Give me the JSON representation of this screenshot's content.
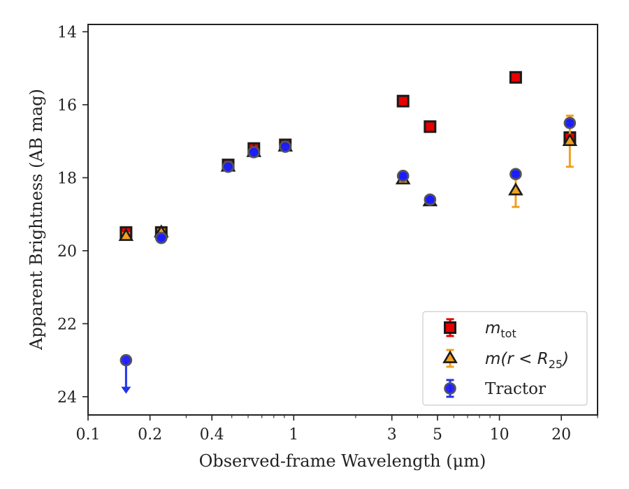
{
  "chart_data": {
    "type": "scatter",
    "xlabel": "Observed-frame Wavelength (μm)",
    "ylabel": "Apparent Brightness (AB mag)",
    "xscale": "log",
    "xlim": [
      0.1,
      30
    ],
    "ylim": [
      24.5,
      13.8
    ],
    "y_inverted": true,
    "xticks": [
      {
        "value": 0.1,
        "label": "0.1"
      },
      {
        "value": 0.2,
        "label": "0.2"
      },
      {
        "value": 0.4,
        "label": "0.4"
      },
      {
        "value": 1,
        "label": "1"
      },
      {
        "value": 3,
        "label": "3"
      },
      {
        "value": 5,
        "label": "5"
      },
      {
        "value": 10,
        "label": "10"
      },
      {
        "value": 20,
        "label": "20"
      }
    ],
    "yticks": [
      {
        "value": 14,
        "label": "14"
      },
      {
        "value": 16,
        "label": "16"
      },
      {
        "value": 18,
        "label": "18"
      },
      {
        "value": 20,
        "label": "20"
      },
      {
        "value": 22,
        "label": "22"
      },
      {
        "value": 24,
        "label": "24"
      }
    ],
    "legend_position": "lower-right",
    "series": [
      {
        "name": "m_tot",
        "legend_main": "m",
        "legend_sub": "tot",
        "legend_tail": "",
        "marker": "square",
        "color": "#e60000",
        "errcolor": "#e60000",
        "points": [
          {
            "x": 0.153,
            "y": 19.5,
            "err": 0.08
          },
          {
            "x": 0.227,
            "y": 19.5,
            "err": 0.08
          },
          {
            "x": 0.48,
            "y": 17.65,
            "err": 0.12
          },
          {
            "x": 0.64,
            "y": 17.2,
            "err": 0.1
          },
          {
            "x": 0.91,
            "y": 17.1,
            "err": 0.1
          },
          {
            "x": 3.4,
            "y": 15.9,
            "err": 0.05
          },
          {
            "x": 4.6,
            "y": 16.6,
            "err": 0.05
          },
          {
            "x": 12.0,
            "y": 15.25,
            "err": 0.05
          },
          {
            "x": 22.0,
            "y": 16.9,
            "err": 0.1
          }
        ]
      },
      {
        "name": "m(r < R_25)",
        "legend_main": "m(r < R",
        "legend_sub": "25",
        "legend_tail": ")",
        "marker": "triangle",
        "color": "#f0a020",
        "errcolor": "#f0a020",
        "points": [
          {
            "x": 0.153,
            "y": 19.6,
            "err": 0.08
          },
          {
            "x": 0.227,
            "y": 19.5,
            "err": 0.08
          },
          {
            "x": 0.48,
            "y": 17.7,
            "err": 0.1
          },
          {
            "x": 0.64,
            "y": 17.3,
            "err": 0.1
          },
          {
            "x": 0.91,
            "y": 17.15,
            "err": 0.1
          },
          {
            "x": 3.4,
            "y": 18.05,
            "err": 0.05
          },
          {
            "x": 4.6,
            "y": 18.65,
            "err": 0.05
          },
          {
            "x": 12.0,
            "y": 18.35,
            "err": 0.45
          },
          {
            "x": 22.0,
            "y": 17.0,
            "err": 0.7
          }
        ]
      },
      {
        "name": "Tractor",
        "legend_main": "Tractor",
        "legend_sub": "",
        "legend_tail": "",
        "marker": "circle",
        "color": "#1a1aff",
        "errcolor": "#2233ee",
        "points": [
          {
            "x": 0.227,
            "y": 19.65,
            "err": 0.05
          },
          {
            "x": 0.48,
            "y": 17.7,
            "err": 0.1
          },
          {
            "x": 0.64,
            "y": 17.3,
            "err": 0.1
          },
          {
            "x": 0.91,
            "y": 17.15,
            "err": 0.1
          },
          {
            "x": 3.4,
            "y": 17.95,
            "err": 0.05
          },
          {
            "x": 4.6,
            "y": 18.6,
            "err": 0.05
          },
          {
            "x": 12.0,
            "y": 17.9,
            "err": 0.05
          },
          {
            "x": 22.0,
            "y": 16.5,
            "err": 0.05
          }
        ],
        "upper_limits": [
          {
            "x": 0.153,
            "y": 23.0,
            "arrow_to": 23.9
          }
        ]
      }
    ]
  }
}
